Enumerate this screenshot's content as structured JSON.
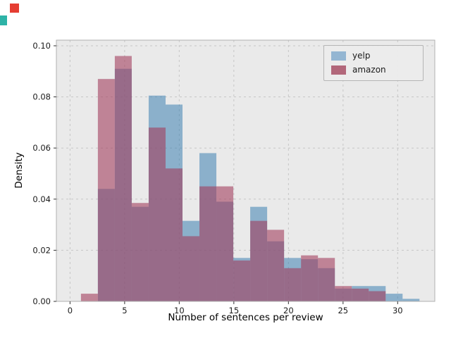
{
  "figure": {
    "background": "#ffffff",
    "plot_background": "#eaeaea",
    "grid_color": "#c6c6c6",
    "border_color": "#b0b0b0",
    "tick_color": "#333333"
  },
  "decorations": {
    "red_mark_color": "#e53d32",
    "teal_mark_color": "#2eb3a7"
  },
  "chart_data": {
    "type": "bar",
    "subtype": "overlaid-density-histogram",
    "title": "",
    "xlabel": "Number of sentences per review",
    "ylabel": "Density",
    "xlim": [
      -1.25,
      33.4
    ],
    "ylim": [
      0,
      0.1022
    ],
    "xticks": [
      0,
      5,
      10,
      15,
      20,
      25,
      30
    ],
    "yticks": [
      0.0,
      0.02,
      0.04,
      0.06,
      0.08,
      0.1
    ],
    "grid": "dashed",
    "bin_edges": [
      1.0,
      2.55,
      4.1,
      5.65,
      7.2,
      8.75,
      10.3,
      11.85,
      13.4,
      14.95,
      16.5,
      18.05,
      19.6,
      21.15,
      22.7,
      24.25,
      25.8,
      27.35,
      28.9,
      30.45,
      32.0
    ],
    "series": [
      {
        "name": "yelp",
        "color": "#3c7fb1",
        "opacity": 0.55,
        "values": [
          0,
          0.044,
          0.091,
          0.037,
          0.0805,
          0.077,
          0.0315,
          0.058,
          0.039,
          0.017,
          0.037,
          0.0235,
          0.017,
          0.0165,
          0.013,
          0.005,
          0.006,
          0.006,
          0.003,
          0.001
        ]
      },
      {
        "name": "amazon",
        "color": "#a23d5d",
        "opacity": 0.6,
        "values": [
          0.003,
          0.087,
          0.096,
          0.0385,
          0.068,
          0.052,
          0.0255,
          0.045,
          0.045,
          0.016,
          0.0315,
          0.028,
          0.013,
          0.018,
          0.017,
          0.006,
          0.005,
          0.004,
          0,
          0
        ]
      }
    ],
    "legend": {
      "position": "upper right",
      "entries": [
        {
          "label": "yelp",
          "color": "#94b6d2"
        },
        {
          "label": "amazon",
          "color": "#b2677a"
        }
      ]
    }
  }
}
